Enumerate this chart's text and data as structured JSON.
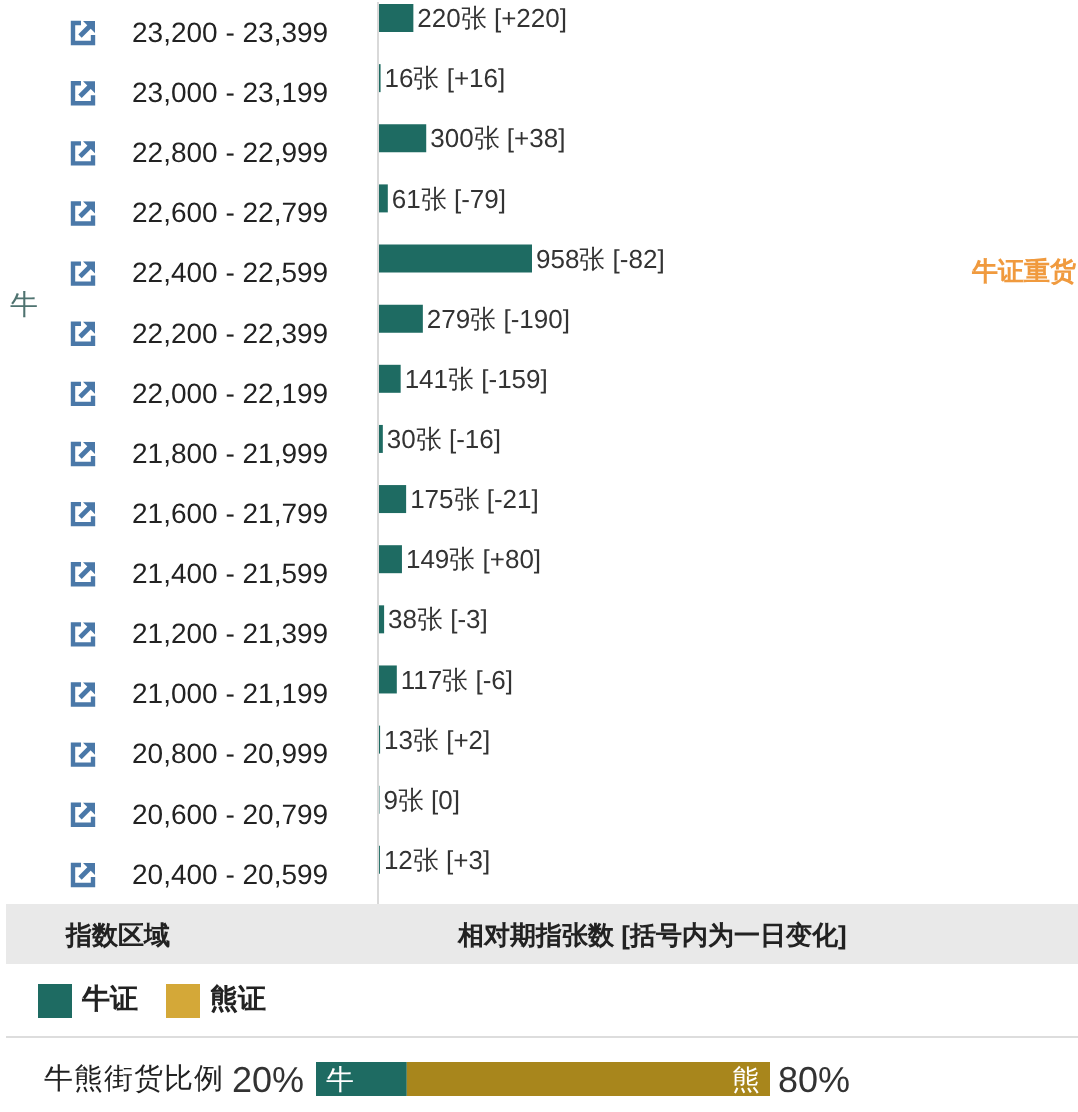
{
  "chart_data": [
    {
      "type": "bar",
      "orientation": "horizontal",
      "categories": [
        "23,200 - 23,399",
        "23,000 - 23,199",
        "22,800 - 22,999",
        "22,600 - 22,799",
        "22,400 - 22,599",
        "22,200 - 22,399",
        "22,000 - 22,199",
        "21,800 - 21,999",
        "21,600 - 21,799",
        "21,400 - 21,599",
        "21,200 - 21,399",
        "21,000 - 21,199",
        "20,800 - 20,999",
        "20,600 - 20,799",
        "20,400 - 20,599"
      ],
      "series": [
        {
          "name": "牛证",
          "color": "#1e6b62",
          "values": [
            220,
            16,
            300,
            61,
            958,
            279,
            141,
            30,
            175,
            149,
            38,
            117,
            13,
            9,
            12
          ],
          "value_labels": [
            "220张 [+220]",
            "16张 [+16]",
            "300张 [+38]",
            "61张 [-79]",
            "958张 [-82]",
            "279张 [-190]",
            "141张 [-159]",
            "30张 [-16]",
            "175张 [-21]",
            "149张 [+80]",
            "38张 [-3]",
            "117张 [-6]",
            "13张 [+2]",
            "9张 [0]",
            "12张 [+3]"
          ]
        },
        {
          "name": "熊证",
          "color": "#d4a838",
          "values": [
            null,
            null,
            null,
            null,
            null,
            null,
            null,
            null,
            null,
            null,
            null,
            null,
            null,
            null,
            null
          ]
        }
      ],
      "xlabel": "相对期指张数 [括号内为一日变化]",
      "ylabel": "指数区域",
      "legend": "bottom",
      "annotations": [
        "牛",
        "牛证重货"
      ]
    },
    {
      "type": "bar",
      "orientation": "horizontal",
      "stacked": true,
      "categories": [
        "牛熊街货比例"
      ],
      "series": [
        {
          "name": "牛",
          "color": "#1e6b62",
          "values": [
            20
          ],
          "value_labels": [
            "20%"
          ]
        },
        {
          "name": "熊",
          "color": "#a8861c",
          "values": [
            80
          ],
          "value_labels": [
            "80%"
          ]
        }
      ]
    }
  ]
}
